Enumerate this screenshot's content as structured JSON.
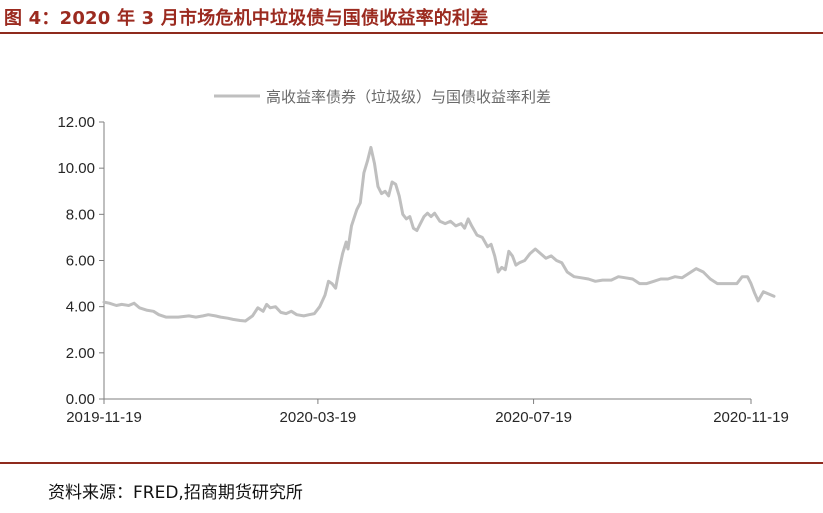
{
  "figure_title": "图 4：2020 年 3 月市场危机中垃圾债与国债收益率的利差",
  "source_text": "资料来源：FRED,招商期货研究所",
  "colors": {
    "accent": "#9b2a1f",
    "series_line": "#bfbfbf",
    "axis": "#7f7f7f"
  },
  "chart_data": {
    "type": "line",
    "title": "",
    "xlabel": "",
    "ylabel": "",
    "ylim": [
      0,
      12
    ],
    "yticks": [
      "0.00",
      "2.00",
      "4.00",
      "6.00",
      "8.00",
      "10.00",
      "12.00"
    ],
    "xticks": [
      "2019-11-19",
      "2020-03-19",
      "2020-07-19",
      "2020-11-19"
    ],
    "xlim": [
      "2019-11-19",
      "2020-11-19"
    ],
    "grid": false,
    "legend_position": "top-center",
    "series": [
      {
        "name": "高收益率债券（垃圾级）与国债收益率利差",
        "points": [
          [
            "2019-11-19",
            4.2
          ],
          [
            "2019-11-22",
            4.15
          ],
          [
            "2019-11-26",
            4.05
          ],
          [
            "2019-11-29",
            4.1
          ],
          [
            "2019-12-03",
            4.05
          ],
          [
            "2019-12-06",
            4.15
          ],
          [
            "2019-12-09",
            3.95
          ],
          [
            "2019-12-13",
            3.85
          ],
          [
            "2019-12-17",
            3.8
          ],
          [
            "2019-12-20",
            3.65
          ],
          [
            "2019-12-24",
            3.55
          ],
          [
            "2019-12-31",
            3.55
          ],
          [
            "2020-01-06",
            3.6
          ],
          [
            "2020-01-10",
            3.55
          ],
          [
            "2020-01-14",
            3.6
          ],
          [
            "2020-01-17",
            3.65
          ],
          [
            "2020-01-21",
            3.6
          ],
          [
            "2020-01-24",
            3.55
          ],
          [
            "2020-01-28",
            3.5
          ],
          [
            "2020-01-31",
            3.45
          ],
          [
            "2020-02-04",
            3.4
          ],
          [
            "2020-02-07",
            3.38
          ],
          [
            "2020-02-11",
            3.6
          ],
          [
            "2020-02-14",
            3.95
          ],
          [
            "2020-02-17",
            3.8
          ],
          [
            "2020-02-19",
            4.1
          ],
          [
            "2020-02-21",
            3.95
          ],
          [
            "2020-02-24",
            4.0
          ],
          [
            "2020-02-27",
            3.75
          ],
          [
            "2020-03-01",
            3.7
          ],
          [
            "2020-03-04",
            3.8
          ],
          [
            "2020-03-07",
            3.65
          ],
          [
            "2020-03-11",
            3.6
          ],
          [
            "2020-03-14",
            3.65
          ],
          [
            "2020-03-17",
            3.7
          ],
          [
            "2020-03-20",
            4.0
          ],
          [
            "2020-03-23",
            4.5
          ],
          [
            "2020-03-25",
            5.1
          ],
          [
            "2020-03-27",
            5.0
          ],
          [
            "2020-03-29",
            4.8
          ],
          [
            "2020-03-31",
            5.6
          ],
          [
            "2020-04-02",
            6.3
          ],
          [
            "2020-04-04",
            6.8
          ],
          [
            "2020-04-05",
            6.5
          ],
          [
            "2020-04-07",
            7.5
          ],
          [
            "2020-04-10",
            8.2
          ],
          [
            "2020-04-12",
            8.5
          ],
          [
            "2020-04-14",
            9.8
          ],
          [
            "2020-04-16",
            10.3
          ],
          [
            "2020-04-18",
            10.9
          ],
          [
            "2020-04-20",
            10.2
          ],
          [
            "2020-04-22",
            9.2
          ],
          [
            "2020-04-24",
            8.9
          ],
          [
            "2020-04-26",
            9.0
          ],
          [
            "2020-04-28",
            8.8
          ],
          [
            "2020-04-30",
            9.4
          ],
          [
            "2020-05-02",
            9.3
          ],
          [
            "2020-05-04",
            8.8
          ],
          [
            "2020-05-06",
            8.0
          ],
          [
            "2020-05-08",
            7.8
          ],
          [
            "2020-05-10",
            7.9
          ],
          [
            "2020-05-12",
            7.4
          ],
          [
            "2020-05-14",
            7.3
          ],
          [
            "2020-05-16",
            7.6
          ],
          [
            "2020-05-18",
            7.9
          ],
          [
            "2020-05-20",
            8.05
          ],
          [
            "2020-05-22",
            7.9
          ],
          [
            "2020-05-24",
            8.05
          ],
          [
            "2020-05-27",
            7.7
          ],
          [
            "2020-05-30",
            7.6
          ],
          [
            "2020-06-02",
            7.7
          ],
          [
            "2020-06-05",
            7.5
          ],
          [
            "2020-06-08",
            7.6
          ],
          [
            "2020-06-10",
            7.4
          ],
          [
            "2020-06-12",
            7.8
          ],
          [
            "2020-06-14",
            7.5
          ],
          [
            "2020-06-17",
            7.1
          ],
          [
            "2020-06-20",
            7.0
          ],
          [
            "2020-06-23",
            6.6
          ],
          [
            "2020-06-25",
            6.7
          ],
          [
            "2020-06-27",
            6.2
          ],
          [
            "2020-06-29",
            5.5
          ],
          [
            "2020-07-01",
            5.7
          ],
          [
            "2020-07-03",
            5.6
          ],
          [
            "2020-07-05",
            6.4
          ],
          [
            "2020-07-07",
            6.2
          ],
          [
            "2020-07-09",
            5.8
          ],
          [
            "2020-07-11",
            5.9
          ],
          [
            "2020-07-14",
            6.0
          ],
          [
            "2020-07-17",
            6.3
          ],
          [
            "2020-07-20",
            6.5
          ],
          [
            "2020-07-23",
            6.3
          ],
          [
            "2020-07-26",
            6.1
          ],
          [
            "2020-07-29",
            6.2
          ],
          [
            "2020-08-01",
            6.0
          ],
          [
            "2020-08-04",
            5.9
          ],
          [
            "2020-08-07",
            5.5
          ],
          [
            "2020-08-11",
            5.3
          ],
          [
            "2020-08-15",
            5.25
          ],
          [
            "2020-08-19",
            5.2
          ],
          [
            "2020-08-23",
            5.1
          ],
          [
            "2020-08-27",
            5.15
          ],
          [
            "2020-09-01",
            5.15
          ],
          [
            "2020-09-05",
            5.3
          ],
          [
            "2020-09-09",
            5.25
          ],
          [
            "2020-09-13",
            5.2
          ],
          [
            "2020-09-17",
            5.0
          ],
          [
            "2020-09-21",
            5.0
          ],
          [
            "2020-09-25",
            5.1
          ],
          [
            "2020-09-29",
            5.2
          ],
          [
            "2020-10-03",
            5.2
          ],
          [
            "2020-10-07",
            5.3
          ],
          [
            "2020-10-11",
            5.25
          ],
          [
            "2020-10-15",
            5.45
          ],
          [
            "2020-10-19",
            5.65
          ],
          [
            "2020-10-23",
            5.5
          ],
          [
            "2020-10-27",
            5.2
          ],
          [
            "2020-10-31",
            5.0
          ],
          [
            "2020-11-03",
            5.0
          ],
          [
            "2020-11-07",
            5.0
          ],
          [
            "2020-11-11",
            5.0
          ],
          [
            "2020-11-14",
            5.3
          ],
          [
            "2020-11-17",
            5.3
          ],
          [
            "2020-11-19",
            5.0
          ],
          [
            "2020-11-21",
            4.6
          ],
          [
            "2020-11-23",
            4.25
          ],
          [
            "2020-11-26",
            4.65
          ],
          [
            "2020-11-29",
            4.55
          ],
          [
            "2020-12-02",
            4.45
          ]
        ]
      }
    ]
  }
}
